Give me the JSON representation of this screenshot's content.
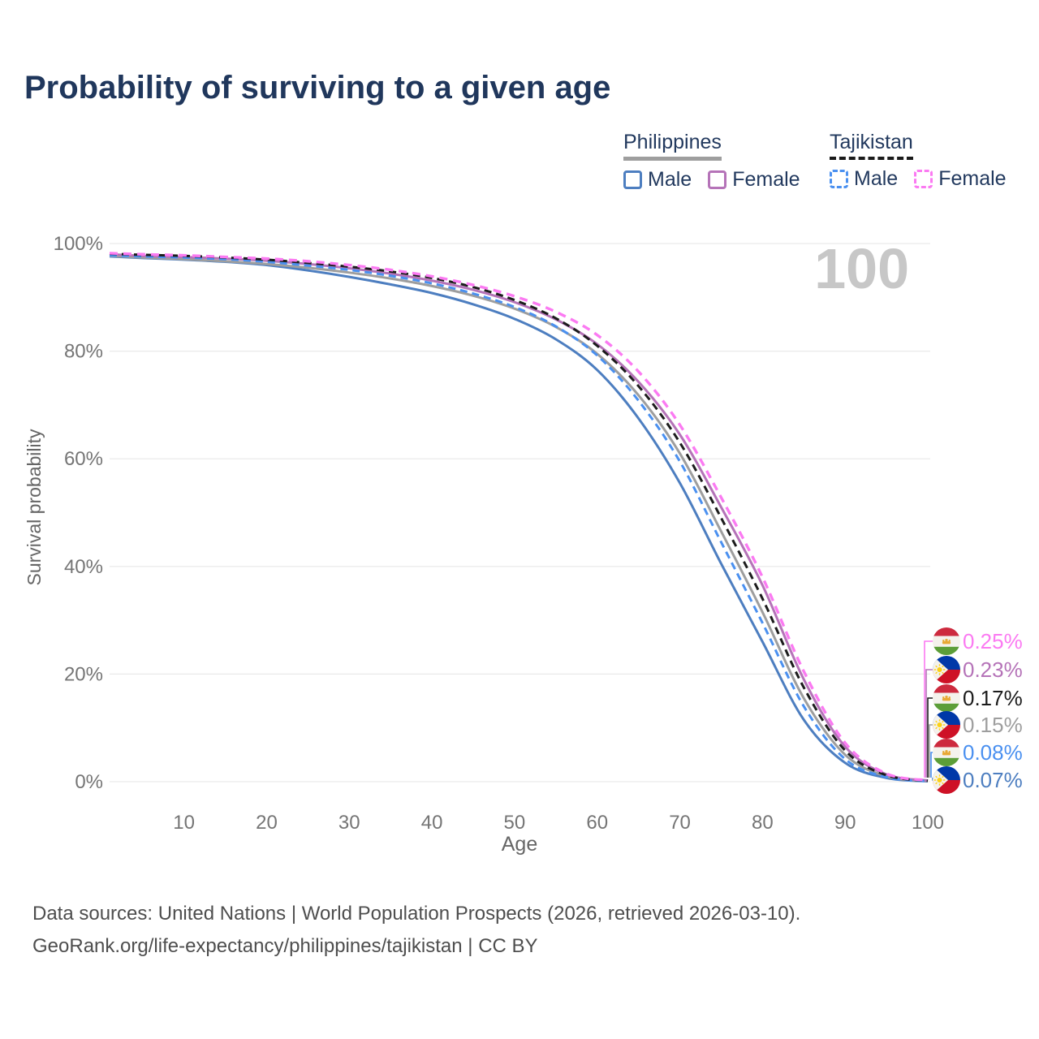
{
  "title": "Probability of surviving to a given age",
  "watermark": "100",
  "legend": {
    "groups": [
      {
        "label": "Philippines",
        "line_style": "solid",
        "underline_color": "#9e9e9e",
        "items": [
          {
            "label": "Male",
            "color": "#4d7ec0"
          },
          {
            "label": "Female",
            "color": "#b573b8"
          }
        ]
      },
      {
        "label": "Tajikistan",
        "line_style": "dashed",
        "underline_color": "#1a1a1a",
        "items": [
          {
            "label": "Male",
            "color": "#4a90f0"
          },
          {
            "label": "Female",
            "color": "#fb7af2"
          }
        ]
      }
    ]
  },
  "chart_data": {
    "type": "line",
    "title": "Probability of surviving to a given age",
    "xlabel": "Age",
    "ylabel": "Survival probability",
    "xlim": [
      1,
      100
    ],
    "ylim": [
      0,
      100
    ],
    "x_ticks": [
      10,
      20,
      30,
      40,
      50,
      60,
      70,
      80,
      90,
      100
    ],
    "y_ticks": [
      0,
      20,
      40,
      60,
      80,
      100
    ],
    "y_tick_suffix": "%",
    "grid": "horizontal",
    "legend_position": "top-right",
    "x": [
      1,
      5,
      10,
      15,
      20,
      25,
      30,
      35,
      40,
      45,
      50,
      55,
      60,
      65,
      70,
      75,
      80,
      85,
      90,
      95,
      100
    ],
    "series": [
      {
        "name": "Philippines Male",
        "country": "Philippines",
        "sex": "Male",
        "color": "#4d7ec0",
        "dash": "solid",
        "flag": "philippines",
        "end_label": "0.07%",
        "values": [
          97.6,
          97.3,
          97.0,
          96.6,
          96.0,
          95.0,
          93.8,
          92.4,
          90.8,
          88.7,
          86.0,
          82.2,
          76.5,
          67.5,
          55.5,
          40.5,
          26.0,
          11.5,
          3.5,
          0.7,
          0.07
        ]
      },
      {
        "name": "Philippines Both sexes",
        "country": "Philippines",
        "sex": "Both sexes",
        "color": "#9e9e9e",
        "dash": "solid",
        "flag": "philippines",
        "end_label": "0.15%",
        "values": [
          97.7,
          97.4,
          97.1,
          96.7,
          96.2,
          95.5,
          94.6,
          93.5,
          92.1,
          90.3,
          87.9,
          84.5,
          79.5,
          71.8,
          61.0,
          46.5,
          31.5,
          15.5,
          5.0,
          1.0,
          0.15
        ]
      },
      {
        "name": "Philippines Female",
        "country": "Philippines",
        "sex": "Female",
        "color": "#b573b8",
        "dash": "solid",
        "flag": "philippines",
        "end_label": "0.23%",
        "values": [
          98.0,
          97.7,
          97.5,
          97.2,
          96.8,
          96.2,
          95.4,
          94.4,
          93.1,
          91.4,
          89.1,
          85.9,
          81.3,
          74.3,
          64.5,
          51.0,
          36.5,
          19.0,
          6.5,
          1.35,
          0.23
        ]
      },
      {
        "name": "Tajikistan Male",
        "country": "Tajikistan",
        "sex": "Male",
        "color": "#4a90f0",
        "dash": "dashed",
        "flag": "tajikistan",
        "end_label": "0.08%",
        "values": [
          97.8,
          97.6,
          97.4,
          97.1,
          96.6,
          95.9,
          95.1,
          94.0,
          92.6,
          90.7,
          88.2,
          84.6,
          79.2,
          70.8,
          59.5,
          44.5,
          29.5,
          14.0,
          4.2,
          0.85,
          0.08
        ]
      },
      {
        "name": "Tajikistan Both sexes",
        "country": "Tajikistan",
        "sex": "Both sexes",
        "color": "#1c1c1c",
        "dash": "dashed",
        "flag": "tajikistan",
        "end_label": "0.17%",
        "values": [
          98.1,
          97.9,
          97.7,
          97.4,
          97.0,
          96.4,
          95.7,
          94.8,
          93.6,
          91.9,
          89.5,
          86.1,
          81.0,
          73.5,
          63.0,
          49.0,
          34.0,
          17.5,
          5.8,
          1.2,
          0.17
        ]
      },
      {
        "name": "Tajikistan Female",
        "country": "Tajikistan",
        "sex": "Female",
        "color": "#fb7af2",
        "dash": "dashed",
        "flag": "tajikistan",
        "end_label": "0.25%",
        "values": [
          98.2,
          98.0,
          97.8,
          97.5,
          97.2,
          96.7,
          96.0,
          95.1,
          93.9,
          92.3,
          90.2,
          87.3,
          83.0,
          76.2,
          66.3,
          52.8,
          38.0,
          20.5,
          7.2,
          1.5,
          0.25
        ]
      }
    ]
  },
  "footer": {
    "line1": "Data sources: United Nations | World Population Prospects (2026, retrieved 2026-03-10).",
    "line2": "GeoRank.org/life-expectancy/philippines/tajikistan | CC BY"
  }
}
